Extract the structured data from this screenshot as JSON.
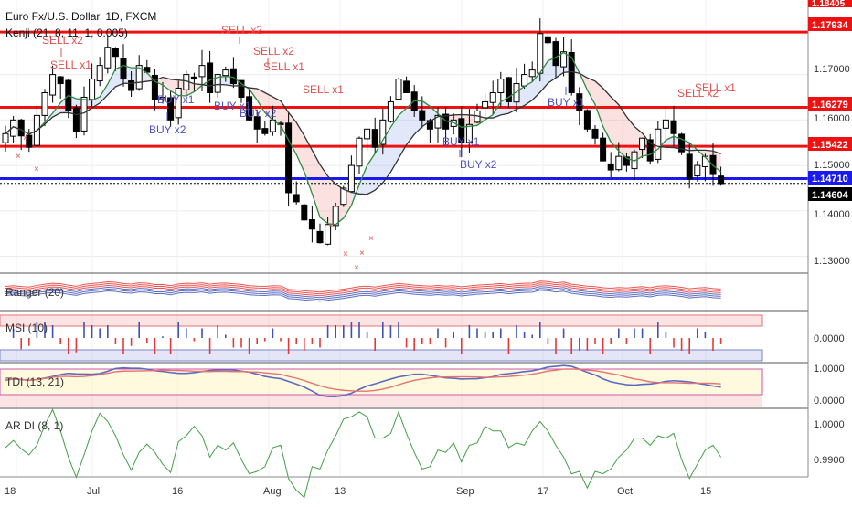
{
  "header": {
    "title": "Euro Fx/U.S. Dollar, 1D, FXCM",
    "indicator": "Kenji (21, 8, 11, 1, 0.005)"
  },
  "price_axis": {
    "ticks": [
      "1.17000",
      "1.16000",
      "1.15000",
      "1.14000",
      "1.13000"
    ],
    "tags": [
      {
        "label": "1.18405",
        "color": "#ee1111"
      },
      {
        "label": "1.17934",
        "color": "#ee1111"
      },
      {
        "label": "1.16279",
        "color": "#ee1111"
      },
      {
        "label": "1.15422",
        "color": "#ee1111"
      },
      {
        "label": "1.14710",
        "color": "#1a1aee"
      },
      {
        "label": "1.14604",
        "color": "#000000"
      }
    ]
  },
  "x_axis": {
    "labels": [
      "18",
      "Jul",
      "16",
      "Aug",
      "13",
      "Sep",
      "17",
      "Oct",
      "15"
    ]
  },
  "signals": {
    "sell": [
      "SELL x2",
      "SELL x1",
      "SELL x2",
      "SELL x2",
      "SELL x1",
      "SELL x1",
      "SELL x2",
      "SELL x1"
    ],
    "buy": [
      "BUY x2",
      "BUY x1",
      "BUY x1",
      "BUY x2",
      "BUY x1",
      "BUY x2",
      "BUY x1"
    ]
  },
  "panes": {
    "ranger": {
      "label": "Ranger (20)"
    },
    "msi": {
      "label": "MSI (10)",
      "ticks": [
        "0.0000"
      ]
    },
    "tdi": {
      "label": "TDI (13, 21)",
      "ticks": [
        "1.0000",
        "0.0000"
      ]
    },
    "ardi": {
      "label": "AR DI (8, 1)",
      "ticks": [
        "1.0000",
        "0.9900"
      ]
    }
  },
  "colors": {
    "up_candle": "#ffffff",
    "down_candle": "#000000",
    "resistance": "#ee1111",
    "support": "#1a1aee",
    "sell_signal": "#e05050",
    "buy_signal": "#5050c8"
  },
  "chart_data": {
    "type": "candlestick",
    "symbol": "Euro Fx/U.S. Dollar",
    "timeframe": "1D",
    "ylim": [
      1.1265,
      1.186
    ],
    "horizontal_levels": [
      1.17934,
      1.16279,
      1.15422,
      1.1471
    ],
    "last_price": 1.14604,
    "closes": [
      1.157,
      1.16,
      1.1565,
      1.154,
      1.161,
      1.166,
      1.17,
      1.168,
      1.162,
      1.1575,
      1.165,
      1.169,
      1.172,
      1.176,
      1.174,
      1.169,
      1.1665,
      1.172,
      1.1705,
      1.1645,
      1.165,
      1.16,
      1.167,
      1.17,
      1.169,
      1.172,
      1.166,
      1.17,
      1.171,
      1.168,
      1.165,
      1.16,
      1.158,
      1.157,
      1.16,
      1.159,
      1.144,
      1.142,
      1.138,
      1.136,
      1.133,
      1.137,
      1.141,
      1.145,
      1.15,
      1.156,
      1.158,
      1.154,
      1.16,
      1.164,
      1.169,
      1.166,
      1.162,
      1.16,
      1.158,
      1.161,
      1.158,
      1.16,
      1.155,
      1.159,
      1.162,
      1.164,
      1.166,
      1.169,
      1.164,
      1.168,
      1.17,
      1.171,
      1.179,
      1.177,
      1.172,
      1.175,
      1.166,
      1.162,
      1.158,
      1.156,
      1.151,
      1.149,
      1.152,
      1.15,
      1.153,
      1.156,
      1.151,
      1.158,
      1.16,
      1.157,
      1.153,
      1.147,
      1.15,
      1.152,
      1.148,
      1.146
    ]
  }
}
